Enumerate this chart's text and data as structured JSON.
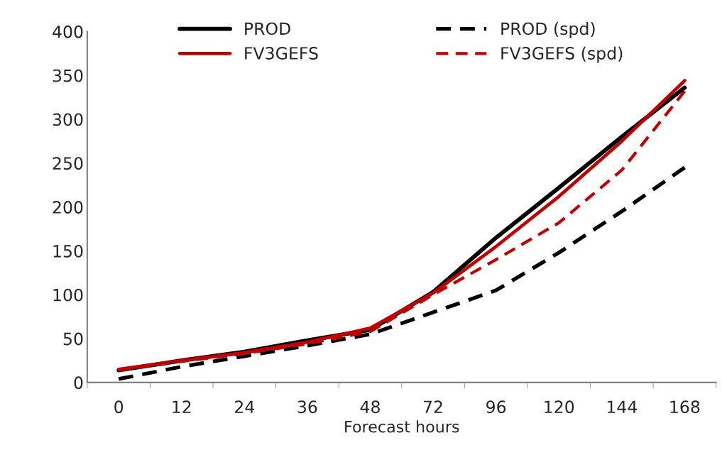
{
  "chart_data": {
    "type": "line",
    "xlabel": "Forecast hours",
    "categories": [
      "0",
      "12",
      "24",
      "36",
      "48",
      "72",
      "96",
      "120",
      "144",
      "168"
    ],
    "series": [
      {
        "name": "PROD",
        "color": "#000000",
        "line_style": "solid",
        "values": [
          14,
          25,
          35,
          48,
          60,
          103,
          165,
          222,
          280,
          336
        ]
      },
      {
        "name": "PROD (spd)",
        "color": "#000000",
        "line_style": "dashed",
        "values": [
          4,
          18,
          30,
          42,
          55,
          80,
          105,
          148,
          195,
          245
        ]
      },
      {
        "name": "FV3GEFS",
        "color": "#c00000",
        "line_style": "solid",
        "values": [
          15,
          25,
          34,
          46,
          62,
          102,
          155,
          212,
          275,
          344
        ]
      },
      {
        "name": "FV3GEFS (spd)",
        "color": "#c00000",
        "line_style": "dashed",
        "values": [
          14,
          24,
          33,
          44,
          58,
          100,
          140,
          182,
          242,
          332
        ]
      }
    ],
    "ylim": [
      0,
      400
    ],
    "yticks": [
      0,
      50,
      100,
      150,
      200,
      250,
      300,
      350,
      400
    ],
    "grid": false,
    "legend": "top",
    "marker": "none"
  }
}
